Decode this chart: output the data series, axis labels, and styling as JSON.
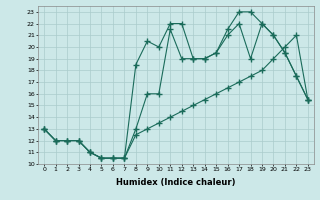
{
  "xlabel": "Humidex (Indice chaleur)",
  "bg_color": "#cce8e8",
  "grid_color": "#aacccc",
  "line_color": "#1a6b5a",
  "xlim": [
    -0.5,
    23.5
  ],
  "ylim": [
    10,
    23.5
  ],
  "xticks": [
    0,
    1,
    2,
    3,
    4,
    5,
    6,
    7,
    8,
    9,
    10,
    11,
    12,
    13,
    14,
    15,
    16,
    17,
    18,
    19,
    20,
    21,
    22,
    23
  ],
  "yticks": [
    10,
    11,
    12,
    13,
    14,
    15,
    16,
    17,
    18,
    19,
    20,
    21,
    22,
    23
  ],
  "line1_x": [
    0,
    1,
    2,
    3,
    4,
    5,
    6,
    7,
    8,
    9,
    10,
    11,
    12,
    13,
    14,
    15,
    16,
    17,
    18,
    19,
    20,
    21,
    22,
    23
  ],
  "line1_y": [
    13,
    12,
    12,
    12,
    11,
    10.5,
    10.5,
    10.5,
    12.5,
    13,
    13.5,
    14,
    14.5,
    15,
    15.5,
    16,
    16.5,
    17,
    17.5,
    18,
    19,
    20,
    21,
    15.5
  ],
  "line2_x": [
    0,
    1,
    2,
    3,
    4,
    5,
    6,
    7,
    8,
    9,
    10,
    11,
    12,
    13,
    14,
    15,
    16,
    17,
    18,
    19,
    20,
    21,
    22,
    23
  ],
  "line2_y": [
    13,
    12,
    12,
    12,
    11,
    10.5,
    10.5,
    10.5,
    13,
    16,
    16,
    21.5,
    19,
    19,
    19,
    19.5,
    21,
    22,
    19,
    22,
    21,
    19.5,
    17.5,
    15.5
  ],
  "line3_x": [
    0,
    1,
    2,
    3,
    4,
    5,
    6,
    7,
    8,
    9,
    10,
    11,
    12,
    13,
    14,
    15,
    16,
    17,
    18,
    19,
    20,
    21,
    22,
    23
  ],
  "line3_y": [
    13,
    12,
    12,
    12,
    11,
    10.5,
    10.5,
    10.5,
    18.5,
    20.5,
    20,
    22,
    22,
    19,
    19,
    19.5,
    21.5,
    23,
    23,
    22,
    21,
    19.5,
    17.5,
    15.5
  ]
}
